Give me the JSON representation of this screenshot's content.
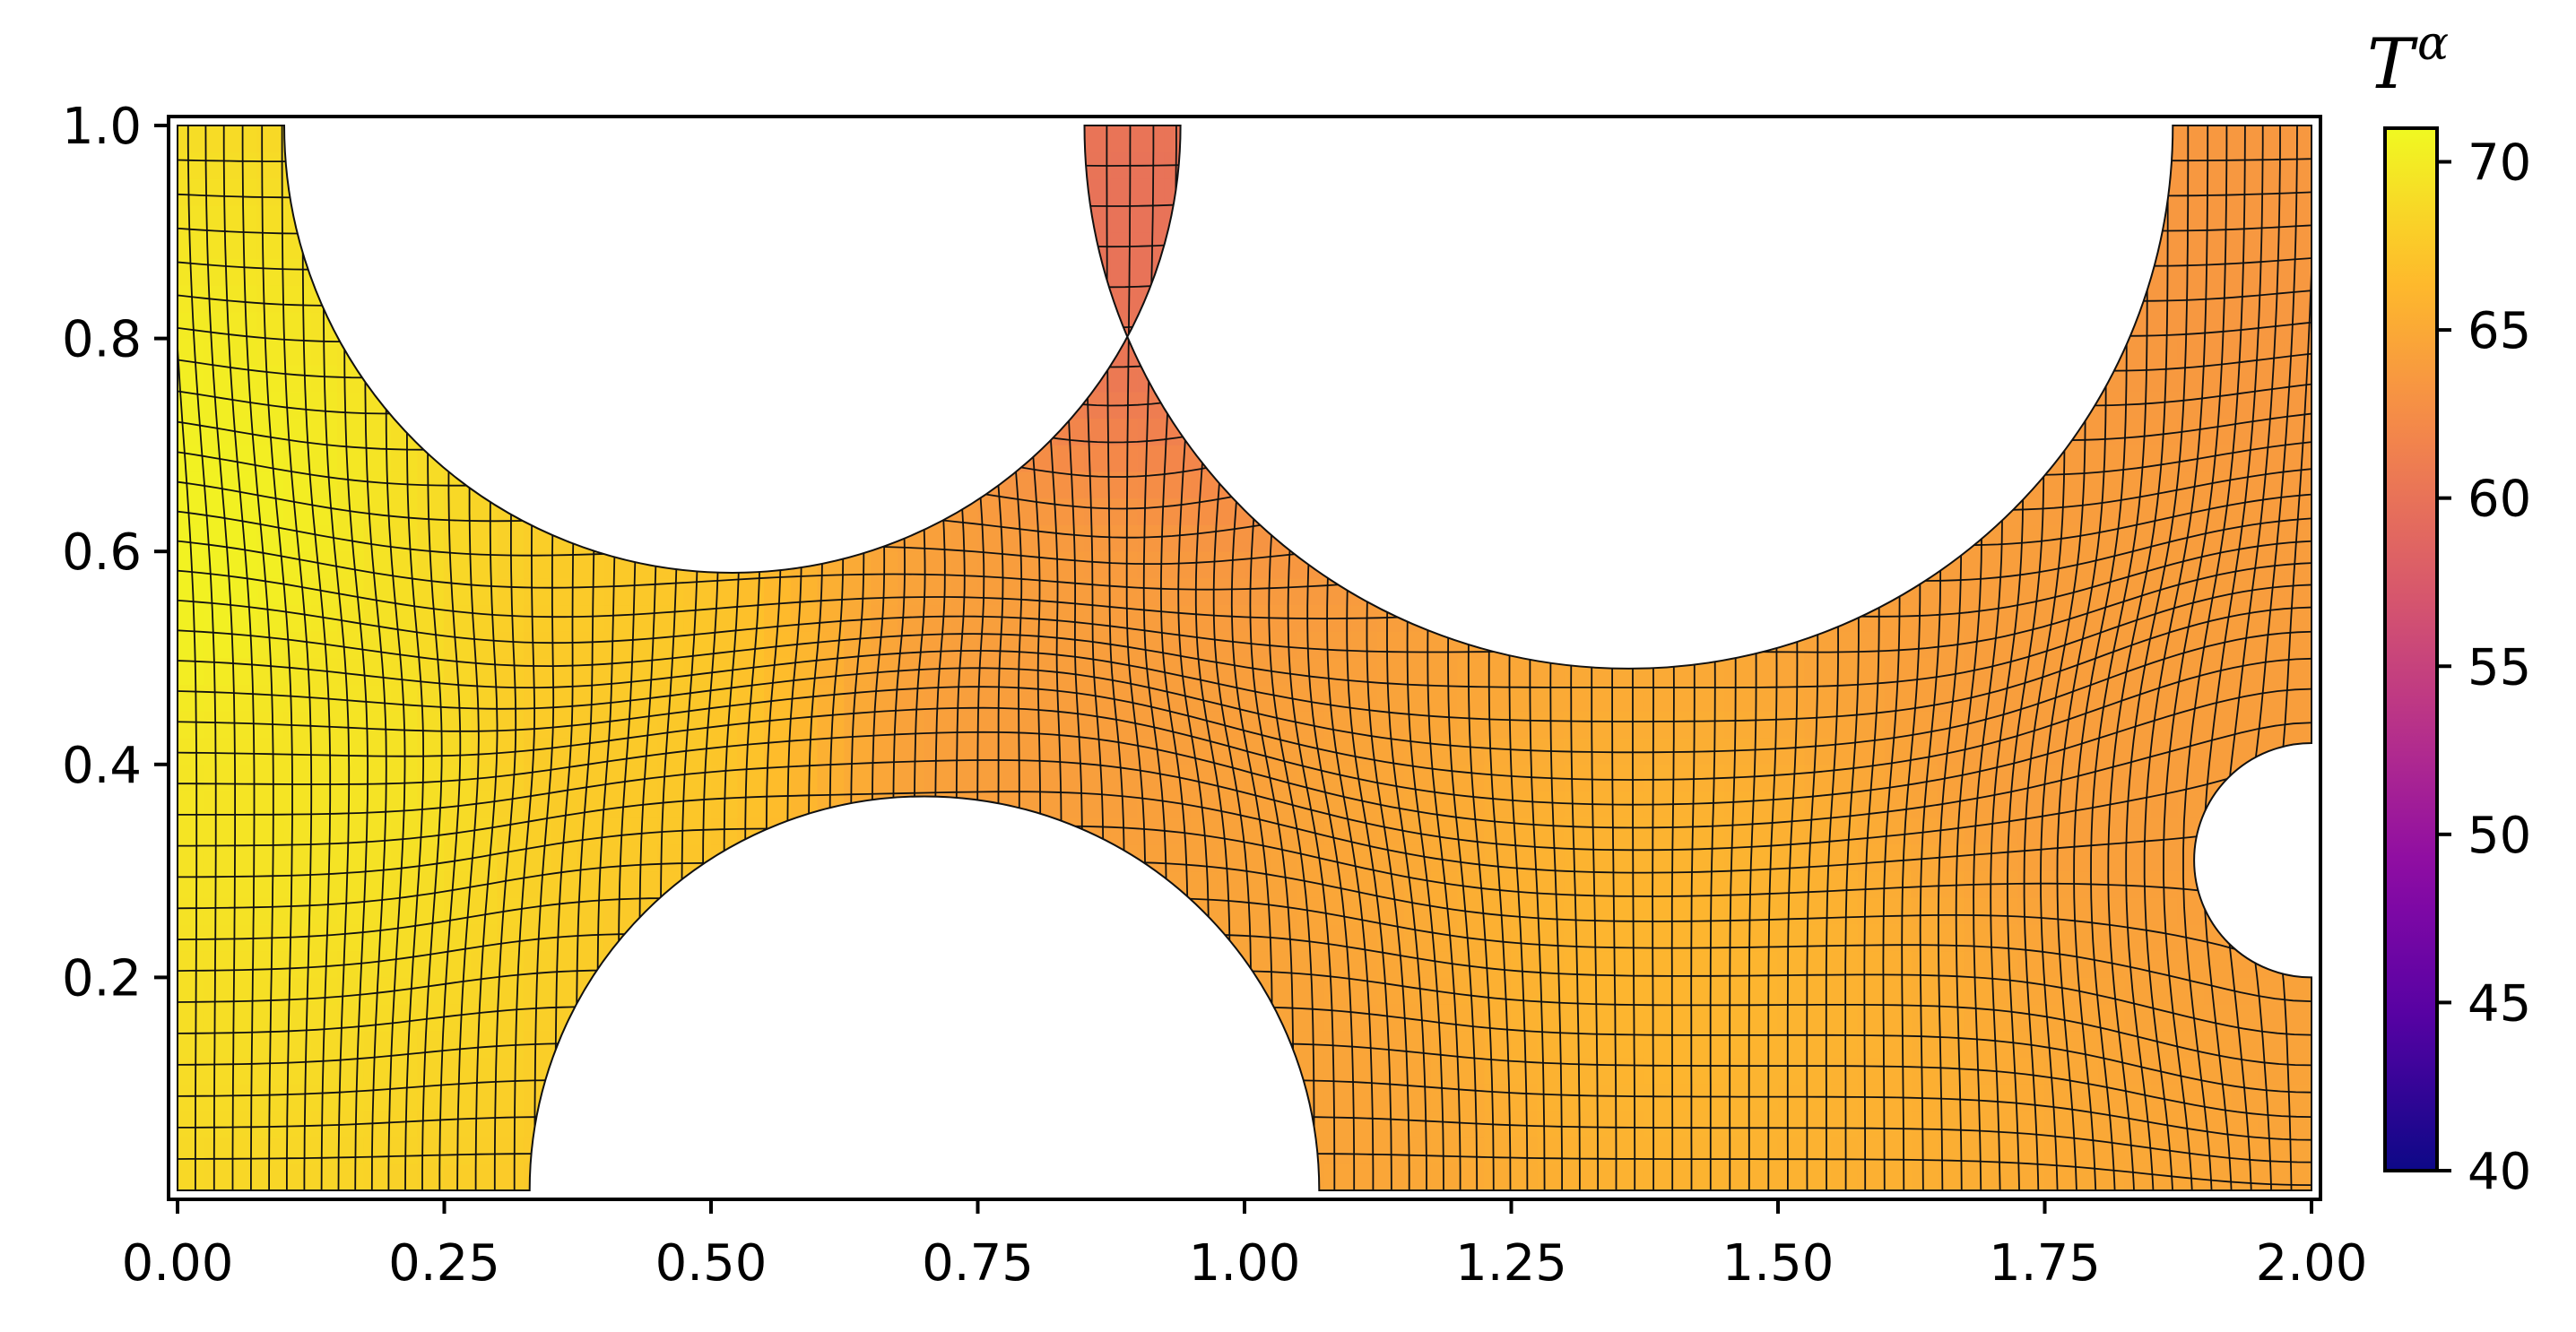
{
  "chart_data": {
    "type": "heatmap",
    "title": "",
    "xlabel": "",
    "ylabel": "",
    "xlim": [
      0.0,
      2.0
    ],
    "ylim": [
      0.0,
      1.0
    ],
    "x_ticks": [
      "0.00",
      "0.25",
      "0.50",
      "0.75",
      "1.00",
      "1.25",
      "1.50",
      "1.75",
      "2.00"
    ],
    "y_ticks": [
      "0.2",
      "0.4",
      "0.6",
      "0.8",
      "1.0"
    ],
    "colorbar": {
      "label_base": "T",
      "label_superscript": "α",
      "range": [
        40,
        71
      ],
      "ticks": [
        "40",
        "45",
        "50",
        "55",
        "60",
        "65",
        "70"
      ],
      "colormap": "plasma"
    },
    "obstacles": [
      {
        "shape": "circle",
        "cx": 0.52,
        "cy": 1.0,
        "r": 0.42,
        "side": "top"
      },
      {
        "shape": "circle",
        "cx": 0.7,
        "cy": 0.0,
        "r": 0.37,
        "side": "bottom"
      },
      {
        "shape": "circle",
        "cx": 1.36,
        "cy": 1.0,
        "r": 0.51,
        "side": "top"
      },
      {
        "shape": "circle",
        "cx": 2.0,
        "cy": 0.31,
        "r": 0.11,
        "side": "right"
      }
    ],
    "field_samples": [
      {
        "x": 0.0,
        "y": 0.6,
        "value": 70.5
      },
      {
        "x": 0.15,
        "y": 0.4,
        "value": 69.5
      },
      {
        "x": 0.4,
        "y": 0.45,
        "value": 67.5
      },
      {
        "x": 0.8,
        "y": 0.45,
        "value": 64.0
      },
      {
        "x": 0.9,
        "y": 0.9,
        "value": 60.0
      },
      {
        "x": 1.0,
        "y": 0.1,
        "value": 64.5
      },
      {
        "x": 1.4,
        "y": 0.2,
        "value": 66.0
      },
      {
        "x": 1.8,
        "y": 0.5,
        "value": 64.0
      },
      {
        "x": 1.9,
        "y": 0.9,
        "value": 63.5
      }
    ]
  }
}
